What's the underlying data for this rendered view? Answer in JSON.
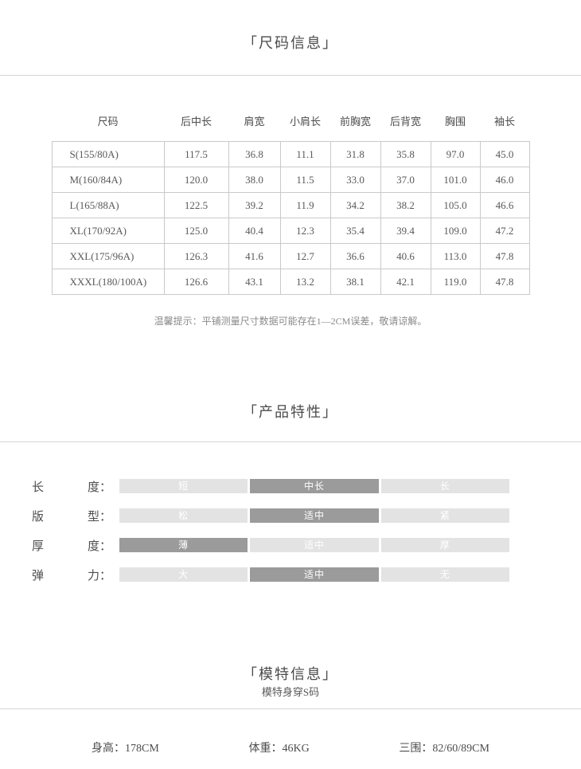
{
  "size_section": {
    "title": "「尺码信息」",
    "table": {
      "headers": [
        "尺码",
        "后中长",
        "肩宽",
        "小肩长",
        "前胸宽",
        "后背宽",
        "胸围",
        "袖长"
      ],
      "rows": [
        {
          "size": "S(155/80A)",
          "values": [
            "117.5",
            "36.8",
            "11.1",
            "31.8",
            "35.8",
            "97.0",
            "45.0"
          ]
        },
        {
          "size": "M(160/84A)",
          "values": [
            "120.0",
            "38.0",
            "11.5",
            "33.0",
            "37.0",
            "101.0",
            "46.0"
          ]
        },
        {
          "size": "L(165/88A)",
          "values": [
            "122.5",
            "39.2",
            "11.9",
            "34.2",
            "38.2",
            "105.0",
            "46.6"
          ]
        },
        {
          "size": "XL(170/92A)",
          "values": [
            "125.0",
            "40.4",
            "12.3",
            "35.4",
            "39.4",
            "109.0",
            "47.2"
          ]
        },
        {
          "size": "XXL(175/96A)",
          "values": [
            "126.3",
            "41.6",
            "12.7",
            "36.6",
            "40.6",
            "113.0",
            "47.8"
          ]
        },
        {
          "size": "XXXL(180/100A)",
          "values": [
            "126.6",
            "43.1",
            "13.2",
            "38.1",
            "42.1",
            "119.0",
            "47.8"
          ]
        }
      ]
    },
    "tip": "温馨提示：平铺测量尺寸数据可能存在1—2CM误差，敬请谅解。"
  },
  "features_section": {
    "title": "「产品特性」",
    "colors": {
      "selected": "#9b9b9b",
      "unselected": "#e3e3e3",
      "option_text": "#ffffff"
    },
    "rows": [
      {
        "name": "length",
        "label_parts": [
          "长",
          "度："
        ],
        "options": [
          "短",
          "中长",
          "长"
        ],
        "selected_index": 1
      },
      {
        "name": "fit",
        "label_parts": [
          "版",
          "型："
        ],
        "options": [
          "松",
          "适中",
          "紧"
        ],
        "selected_index": 1
      },
      {
        "name": "thickness",
        "label_parts": [
          "厚",
          "度："
        ],
        "options": [
          "薄",
          "适中",
          "厚"
        ],
        "selected_index": 0
      },
      {
        "name": "stretch",
        "label_parts": [
          "弹",
          "力："
        ],
        "options": [
          "大",
          "适中",
          "无"
        ],
        "selected_index": 1
      }
    ]
  },
  "model_section": {
    "title": "「模特信息」",
    "subtitle": "模特身穿S码",
    "stats": [
      {
        "label": "身高：",
        "value": "178CM"
      },
      {
        "label": "体重：",
        "value": "46KG"
      },
      {
        "label": "三围：",
        "value": "82/60/89CM"
      }
    ]
  }
}
